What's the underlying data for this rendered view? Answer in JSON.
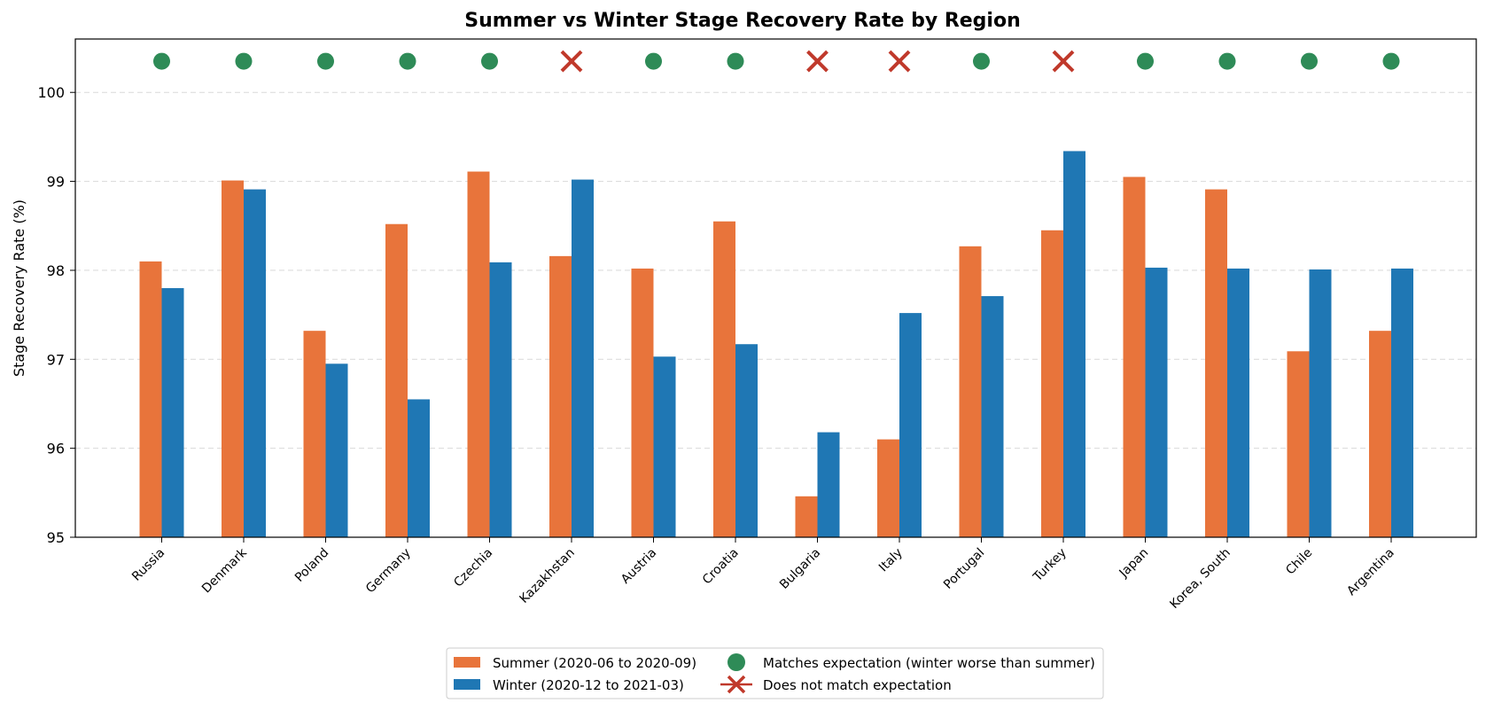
{
  "chart_data": {
    "type": "bar",
    "title": "Summer vs Winter Stage Recovery Rate by Region",
    "xlabel": "",
    "ylabel": "Stage Recovery Rate (%)",
    "ylim": [
      95,
      100.6
    ],
    "yticks": [
      95,
      96,
      97,
      98,
      99,
      100
    ],
    "grid": "horizontal-dashed",
    "legend_position": "bottom-center",
    "categories": [
      "Russia",
      "Denmark",
      "Poland",
      "Germany",
      "Czechia",
      "Kazakhstan",
      "Austria",
      "Croatia",
      "Bulgaria",
      "Italy",
      "Portugal",
      "Turkey",
      "Japan",
      "Korea, South",
      "Chile",
      "Argentina"
    ],
    "series": [
      {
        "name": "Summer (2020-06 to 2020-09)",
        "color": "#e8743b",
        "values": [
          98.1,
          99.01,
          97.32,
          98.52,
          99.11,
          98.16,
          98.02,
          98.55,
          95.46,
          96.1,
          98.27,
          98.45,
          99.05,
          98.91,
          97.09,
          97.32
        ]
      },
      {
        "name": "Winter (2020-12 to 2021-03)",
        "color": "#1f77b4",
        "values": [
          97.8,
          98.91,
          96.95,
          96.55,
          98.09,
          99.02,
          97.03,
          97.17,
          96.18,
          97.52,
          97.71,
          99.34,
          98.03,
          98.02,
          98.01,
          98.02
        ]
      }
    ],
    "markers": {
      "y_value": 100.35,
      "values": [
        true,
        true,
        true,
        true,
        true,
        false,
        true,
        true,
        false,
        false,
        true,
        false,
        true,
        true,
        true,
        true
      ],
      "match": {
        "label": "Matches expectation (winter worse than summer)",
        "color": "#2e8b57",
        "shape": "circle"
      },
      "mismatch": {
        "label": "Does not match expectation",
        "color": "#c0392b",
        "shape": "cross"
      }
    }
  }
}
